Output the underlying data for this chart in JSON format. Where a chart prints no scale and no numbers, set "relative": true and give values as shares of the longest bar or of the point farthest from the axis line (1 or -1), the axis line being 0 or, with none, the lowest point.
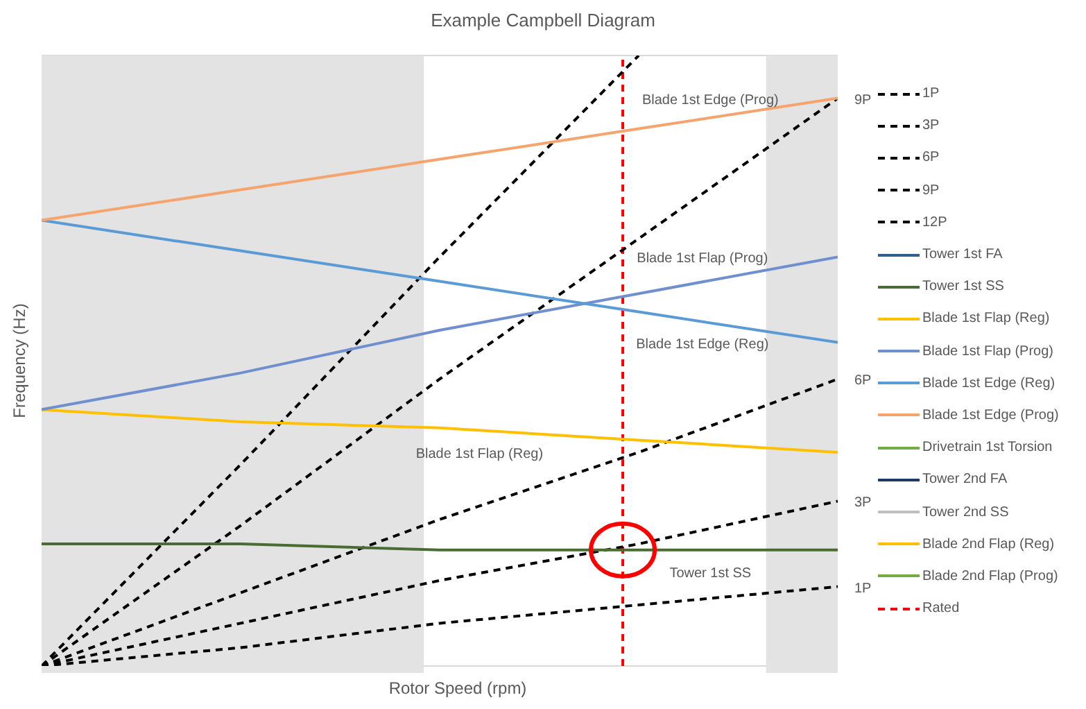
{
  "chart_data": {
    "type": "line",
    "title": "Example Campbell Diagram",
    "xlabel": "Rotor Speed (rpm)",
    "ylabel": "Frequency (Hz)",
    "relative": true,
    "categories": [
      null,
      null,
      null,
      null,
      null
    ],
    "grid": "y",
    "legend": "right",
    "marker": "none",
    "series": [
      {
        "name": "1P",
        "color": "#000000",
        "line_style": "dashed",
        "values": [
          0,
          0.03,
          0.07,
          0.1,
          0.13
        ]
      },
      {
        "name": "3P",
        "color": "#000000",
        "line_style": "dashed",
        "values": [
          0,
          0.07,
          0.14,
          0.2,
          0.27
        ]
      },
      {
        "name": "6P",
        "color": "#000000",
        "line_style": "dashed",
        "values": [
          0,
          0.12,
          0.24,
          0.35,
          0.47
        ]
      },
      {
        "name": "9P",
        "color": "#000000",
        "line_style": "dashed",
        "values": [
          0,
          0.23,
          0.47,
          0.7,
          0.93
        ]
      },
      {
        "name": "12P",
        "color": "#000000",
        "line_style": "dashed",
        "values": [
          0,
          0.33,
          0.67,
          1,
          null
        ]
      },
      {
        "name": "Tower 1st FA",
        "color": "#2e5f8a",
        "values": [
          null,
          null,
          null,
          null,
          null
        ]
      },
      {
        "name": "Tower 1st SS",
        "color": "#4a6b34",
        "values": [
          0.2,
          0.2,
          0.19,
          0.19,
          0.19
        ]
      },
      {
        "name": "Blade 1st Flap (Reg)",
        "color": "#ffc000",
        "values": [
          0.42,
          0.4,
          0.39,
          0.37,
          0.35
        ]
      },
      {
        "name": "Blade 1st Flap (Prog)",
        "color": "#6f8fcf",
        "values": [
          0.42,
          0.48,
          0.55,
          0.61,
          0.67
        ]
      },
      {
        "name": "Blade 1st Edge (Reg)",
        "color": "#5b9bd5",
        "values": [
          0.73,
          0.68,
          0.63,
          0.58,
          0.53
        ]
      },
      {
        "name": "Blade 1st Edge (Prog)",
        "color": "#f4a46c",
        "values": [
          0.73,
          0.78,
          0.83,
          0.88,
          0.93
        ]
      },
      {
        "name": "Drivetrain 1st Torsion",
        "color": "#70ad47",
        "values": [
          null,
          null,
          null,
          null,
          null
        ]
      },
      {
        "name": "Tower 2nd FA",
        "color": "#203864",
        "values": [
          null,
          null,
          null,
          null,
          null
        ]
      },
      {
        "name": "Tower 2nd SS",
        "color": "#bfbfbf",
        "values": [
          null,
          null,
          null,
          null,
          null
        ]
      },
      {
        "name": "Blade 2nd Flap (Reg)",
        "color": "#ffc000",
        "values": [
          null,
          null,
          null,
          null,
          null
        ]
      },
      {
        "name": "Blade 2nd Flap (Prog)",
        "color": "#70ad47",
        "values": [
          null,
          null,
          null,
          null,
          null
        ]
      }
    ],
    "ref_lines": [
      {
        "axis": "x",
        "label": "Rated",
        "color": "#ff0000",
        "line_style": "dashed"
      }
    ],
    "annotations": [
      "9P",
      "6P",
      "3P",
      "1P",
      "Blade 1st Edge (Prog)",
      "Blade 1st Flap (Prog)",
      "Blade 1st Edge (Reg)",
      "Blade 1st Flap (Reg)",
      "Tower 1st SS"
    ]
  }
}
